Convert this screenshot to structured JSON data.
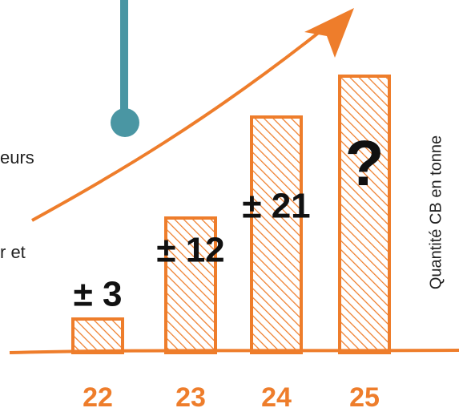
{
  "chart_data": {
    "type": "bar",
    "categories": [
      "22",
      "23",
      "24",
      "25"
    ],
    "values": [
      3,
      12,
      21,
      null
    ],
    "value_labels": [
      "± 3",
      "± 12",
      "± 21",
      "?"
    ],
    "color": "#ee7d2b",
    "y_label": "Quantité CB en tonne"
  },
  "side_texts": [
    "eurs",
    "r et"
  ]
}
